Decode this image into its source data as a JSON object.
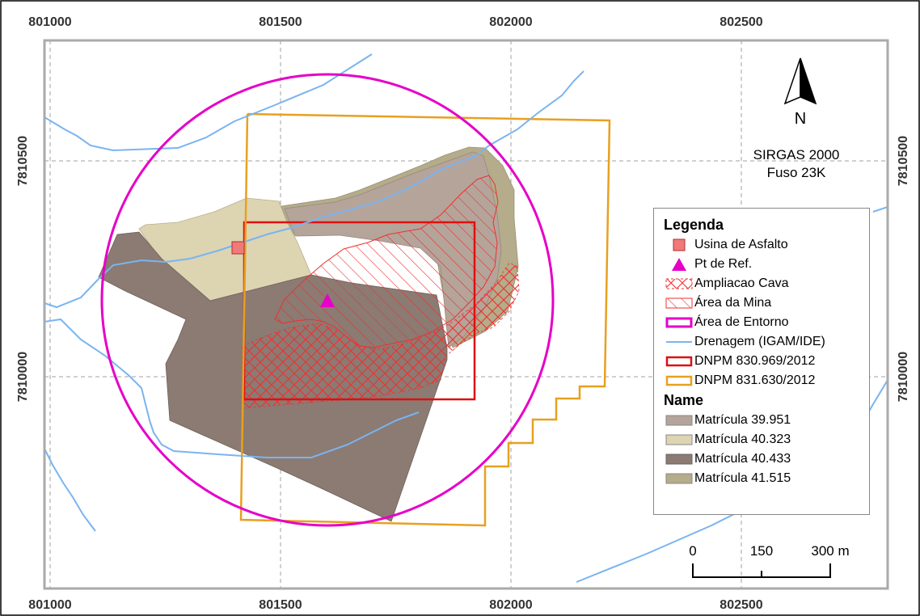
{
  "top_ticks": [
    "801000",
    "801500",
    "802000",
    "802500"
  ],
  "bottom_ticks": [
    "801000",
    "801500",
    "802000",
    "802500"
  ],
  "left_ticks": [
    "7810500",
    "7810000"
  ],
  "right_ticks": [
    "7810500",
    "7810000"
  ],
  "north_arrow": {
    "label": "N"
  },
  "crs": {
    "line1": "SIRGAS 2000",
    "line2": "Fuso 23K"
  },
  "legend": {
    "title": "Legenda",
    "items": [
      {
        "label": "Usina de Asfalto",
        "symbol": "square",
        "color": "#f07a7a"
      },
      {
        "label": "Pt de Ref.",
        "symbol": "triangle",
        "color": "#e600c8"
      },
      {
        "label": "Ampliacao Cava",
        "symbol": "cross-hatch",
        "color": "#ee3030"
      },
      {
        "label": "Área da Mina",
        "symbol": "diag-hatch",
        "color": "#ee3030"
      },
      {
        "label": "Área de Entorno",
        "symbol": "outline",
        "color": "#e600c8"
      },
      {
        "label": "Drenagem (IGAM/IDE)",
        "symbol": "line",
        "color": "#7ab4f0"
      },
      {
        "label": "DNPM 830.969/2012",
        "symbol": "outline",
        "color": "#dd1010"
      },
      {
        "label": "DNPM 831.630/2012",
        "symbol": "outline",
        "color": "#e8a020"
      }
    ],
    "subtitle": "Name",
    "parcels": [
      {
        "label": "Matrícula 39.951",
        "color": "#b5a49a"
      },
      {
        "label": "Matrícula 40.323",
        "color": "#ddd4b2"
      },
      {
        "label": "Matrícula 40.433",
        "color": "#8b7b73"
      },
      {
        "label": "Matrícula 41.515",
        "color": "#b4ac8a"
      }
    ]
  },
  "scale_bar": {
    "labels": [
      "0",
      "150",
      "300 m"
    ]
  },
  "colors": {
    "drainage": "#7ab4f0",
    "entorno": "#e600c8",
    "dnpm_830": "#dd1010",
    "dnpm_831": "#e8a020",
    "mina": "#ee3030",
    "grid": "#a0a0a0",
    "frame": "#aaaaaa"
  }
}
